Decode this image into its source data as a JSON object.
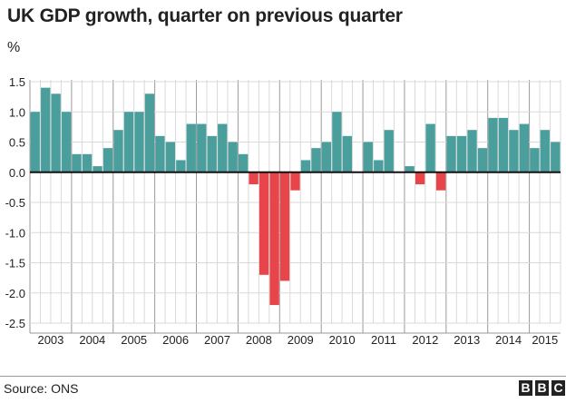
{
  "title": "UK GDP growth, quarter on previous quarter",
  "unit": "%",
  "source": "Source: ONS",
  "logo": [
    "B",
    "B",
    "C"
  ],
  "colors": {
    "positive": "#4a9f9d",
    "negative": "#e8454a",
    "grid": "#d9d9d9",
    "year_divider": "#9a9a9a",
    "zero_line": "#111111"
  },
  "chart_data": {
    "type": "bar",
    "title": "UK GDP growth, quarter on previous quarter",
    "ylabel": "%",
    "xlabel": "",
    "ylim": [
      -2.5,
      1.5
    ],
    "yticks": [
      1.5,
      1.0,
      0.5,
      0.0,
      -0.5,
      -1.0,
      -1.5,
      -2.0,
      -2.5
    ],
    "ytick_labels": [
      "1.5",
      "1.0",
      "0.5",
      "0.0",
      "-0.5",
      "-1.0",
      "-1.5",
      "-2.0",
      "-2.5"
    ],
    "years": [
      "2003",
      "2004",
      "2005",
      "2006",
      "2007",
      "2008",
      "2009",
      "2010",
      "2011",
      "2012",
      "2013",
      "2014",
      "2015"
    ],
    "categories": [
      "2003 Q1",
      "2003 Q2",
      "2003 Q3",
      "2003 Q4",
      "2004 Q1",
      "2004 Q2",
      "2004 Q3",
      "2004 Q4",
      "2005 Q1",
      "2005 Q2",
      "2005 Q3",
      "2005 Q4",
      "2006 Q1",
      "2006 Q2",
      "2006 Q3",
      "2006 Q4",
      "2007 Q1",
      "2007 Q2",
      "2007 Q3",
      "2007 Q4",
      "2008 Q1",
      "2008 Q2",
      "2008 Q3",
      "2008 Q4",
      "2009 Q1",
      "2009 Q2",
      "2009 Q3",
      "2009 Q4",
      "2010 Q1",
      "2010 Q2",
      "2010 Q3",
      "2010 Q4",
      "2011 Q1",
      "2011 Q2",
      "2011 Q3",
      "2011 Q4",
      "2012 Q1",
      "2012 Q2",
      "2012 Q3",
      "2012 Q4",
      "2013 Q1",
      "2013 Q2",
      "2013 Q3",
      "2013 Q4",
      "2014 Q1",
      "2014 Q2",
      "2014 Q3",
      "2014 Q4",
      "2015 Q1",
      "2015 Q2",
      "2015 Q3"
    ],
    "values": [
      1.0,
      1.4,
      1.3,
      1.0,
      0.3,
      0.3,
      0.1,
      0.4,
      0.7,
      1.0,
      1.0,
      1.3,
      0.6,
      0.5,
      0.2,
      0.8,
      0.8,
      0.6,
      0.8,
      0.5,
      0.3,
      -0.2,
      -1.7,
      -2.2,
      -1.8,
      -0.3,
      0.2,
      0.4,
      0.5,
      1.0,
      0.6,
      0.0,
      0.5,
      0.2,
      0.7,
      0.0,
      0.1,
      -0.2,
      0.8,
      -0.3,
      0.6,
      0.6,
      0.7,
      0.4,
      0.9,
      0.9,
      0.7,
      0.8,
      0.4,
      0.7,
      0.5
    ],
    "grid": true,
    "legend": "none"
  }
}
